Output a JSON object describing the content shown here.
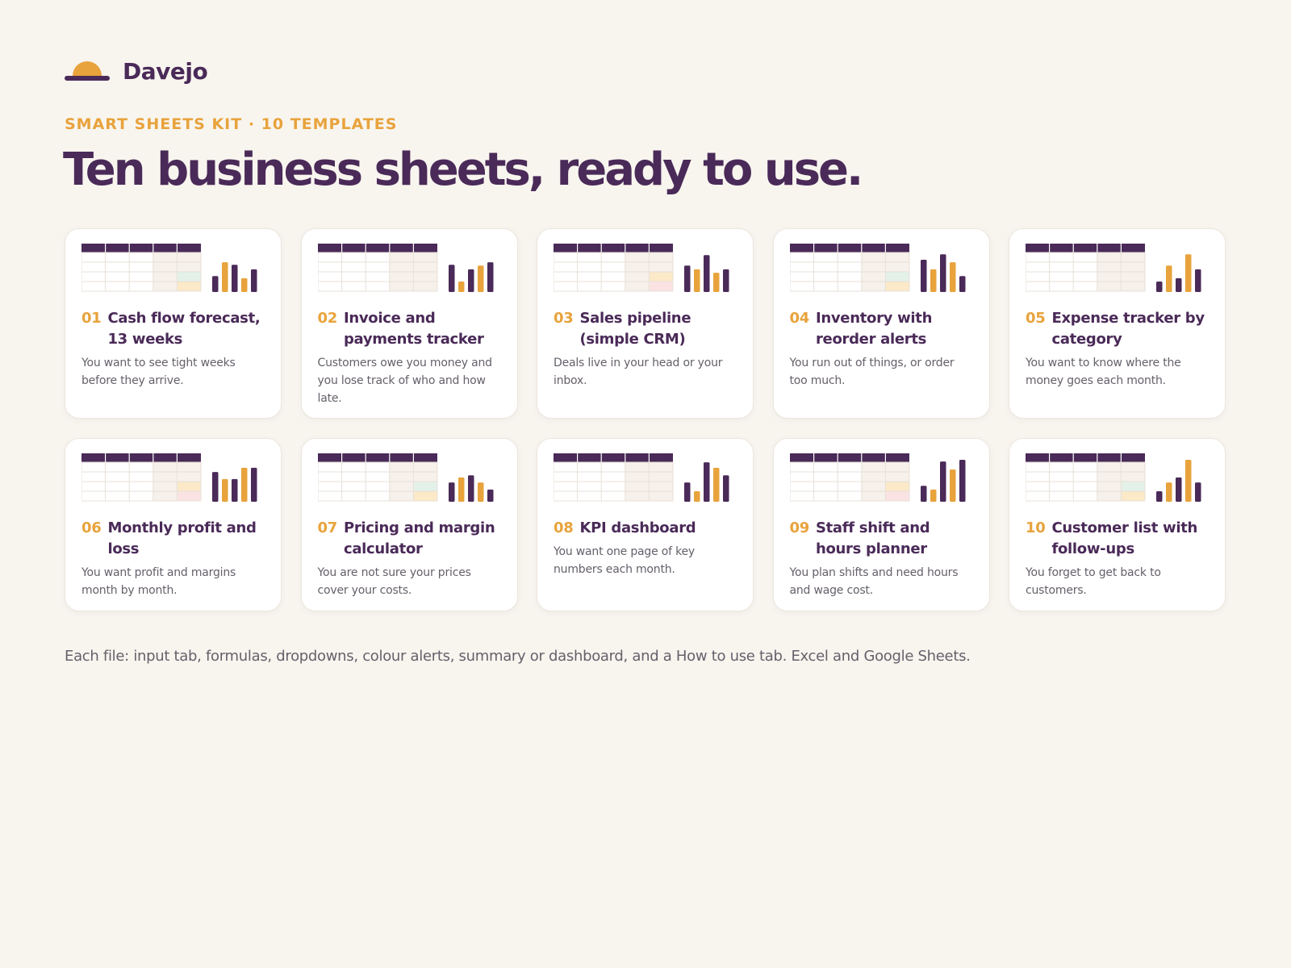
{
  "brand": {
    "name": "Davejo",
    "icon": "sun-horizon-icon"
  },
  "eyebrow": "SMART SHEETS KIT · 10 TEMPLATES",
  "headline": "Ten business sheets, ready to use.",
  "colors": {
    "purple": "#4a2a58",
    "orange": "#e8a33c",
    "background": "#f8f5ef",
    "green_highlight": "#e3f1e8",
    "yellow_highlight": "#fbe9c8",
    "pink_highlight": "#fbe3e3"
  },
  "cards": [
    {
      "num": "01",
      "title": "Cash flow forecast, 13 weeks",
      "desc": "You want to see tight weeks before they arrive.",
      "highlights": [
        "none",
        "green",
        "yellow"
      ],
      "bars": [
        {
          "h": 0.38,
          "c": "purple"
        },
        {
          "h": 0.71,
          "c": "orange"
        },
        {
          "h": 0.65,
          "c": "purple"
        },
        {
          "h": 0.33,
          "c": "orange"
        },
        {
          "h": 0.54,
          "c": "purple"
        }
      ]
    },
    {
      "num": "02",
      "title": "Invoice and payments tracker",
      "desc": "Customers owe you money and you lose track of who and how late.",
      "highlights": [
        "none",
        "none",
        "none"
      ],
      "bars": [
        {
          "h": 0.65,
          "c": "purple"
        },
        {
          "h": 0.25,
          "c": "orange"
        },
        {
          "h": 0.54,
          "c": "purple"
        },
        {
          "h": 0.63,
          "c": "orange"
        },
        {
          "h": 0.71,
          "c": "purple"
        }
      ]
    },
    {
      "num": "03",
      "title": "Sales pipeline (simple CRM)",
      "desc": "Deals live in your head or your inbox.",
      "highlights": [
        "none",
        "yellow",
        "pink"
      ],
      "bars": [
        {
          "h": 0.63,
          "c": "purple"
        },
        {
          "h": 0.54,
          "c": "orange"
        },
        {
          "h": 0.88,
          "c": "purple"
        },
        {
          "h": 0.46,
          "c": "orange"
        },
        {
          "h": 0.54,
          "c": "purple"
        }
      ]
    },
    {
      "num": "04",
      "title": "Inventory with reorder alerts",
      "desc": "You run out of things, or order too much.",
      "highlights": [
        "none",
        "green",
        "yellow"
      ],
      "bars": [
        {
          "h": 0.77,
          "c": "purple"
        },
        {
          "h": 0.54,
          "c": "orange"
        },
        {
          "h": 0.9,
          "c": "purple"
        },
        {
          "h": 0.71,
          "c": "orange"
        },
        {
          "h": 0.38,
          "c": "purple"
        }
      ]
    },
    {
      "num": "05",
      "title": "Expense tracker by category",
      "desc": "You want to know where the money goes each month.",
      "highlights": [
        "none",
        "none",
        "none"
      ],
      "bars": [
        {
          "h": 0.25,
          "c": "purple"
        },
        {
          "h": 0.63,
          "c": "orange"
        },
        {
          "h": 0.33,
          "c": "purple"
        },
        {
          "h": 0.9,
          "c": "orange"
        },
        {
          "h": 0.54,
          "c": "purple"
        }
      ]
    },
    {
      "num": "06",
      "title": "Monthly profit and loss",
      "desc": "You want profit and margins month by month.",
      "highlights": [
        "none",
        "yellow",
        "pink"
      ],
      "bars": [
        {
          "h": 0.71,
          "c": "purple"
        },
        {
          "h": 0.54,
          "c": "orange"
        },
        {
          "h": 0.54,
          "c": "purple"
        },
        {
          "h": 0.81,
          "c": "orange"
        },
        {
          "h": 0.81,
          "c": "purple"
        }
      ]
    },
    {
      "num": "07",
      "title": "Pricing and margin calculator",
      "desc": "You are not sure your prices cover your costs.",
      "highlights": [
        "none",
        "green",
        "yellow"
      ],
      "bars": [
        {
          "h": 0.46,
          "c": "purple"
        },
        {
          "h": 0.58,
          "c": "orange"
        },
        {
          "h": 0.63,
          "c": "purple"
        },
        {
          "h": 0.46,
          "c": "orange"
        },
        {
          "h": 0.29,
          "c": "purple"
        }
      ]
    },
    {
      "num": "08",
      "title": "KPI dashboard",
      "desc": "You want one page of key numbers each month.",
      "highlights": [
        "none",
        "none",
        "none"
      ],
      "bars": [
        {
          "h": 0.46,
          "c": "purple"
        },
        {
          "h": 0.25,
          "c": "orange"
        },
        {
          "h": 0.94,
          "c": "purple"
        },
        {
          "h": 0.81,
          "c": "orange"
        },
        {
          "h": 0.63,
          "c": "purple"
        }
      ]
    },
    {
      "num": "09",
      "title": "Staff shift and hours planner",
      "desc": "You plan shifts and need hours and wage cost.",
      "highlights": [
        "none",
        "yellow",
        "pink"
      ],
      "bars": [
        {
          "h": 0.38,
          "c": "purple"
        },
        {
          "h": 0.29,
          "c": "orange"
        },
        {
          "h": 0.96,
          "c": "purple"
        },
        {
          "h": 0.77,
          "c": "orange"
        },
        {
          "h": 1.0,
          "c": "purple"
        }
      ]
    },
    {
      "num": "10",
      "title": "Customer list with follow-ups",
      "desc": "You forget to get back to customers.",
      "highlights": [
        "none",
        "green",
        "yellow"
      ],
      "bars": [
        {
          "h": 0.25,
          "c": "purple"
        },
        {
          "h": 0.46,
          "c": "orange"
        },
        {
          "h": 0.58,
          "c": "purple"
        },
        {
          "h": 1.0,
          "c": "orange"
        },
        {
          "h": 0.46,
          "c": "purple"
        }
      ]
    }
  ],
  "footer_note": "Each file: input tab, formulas, dropdowns, colour alerts, summary or dashboard, and a How to use tab. Excel and Google Sheets."
}
